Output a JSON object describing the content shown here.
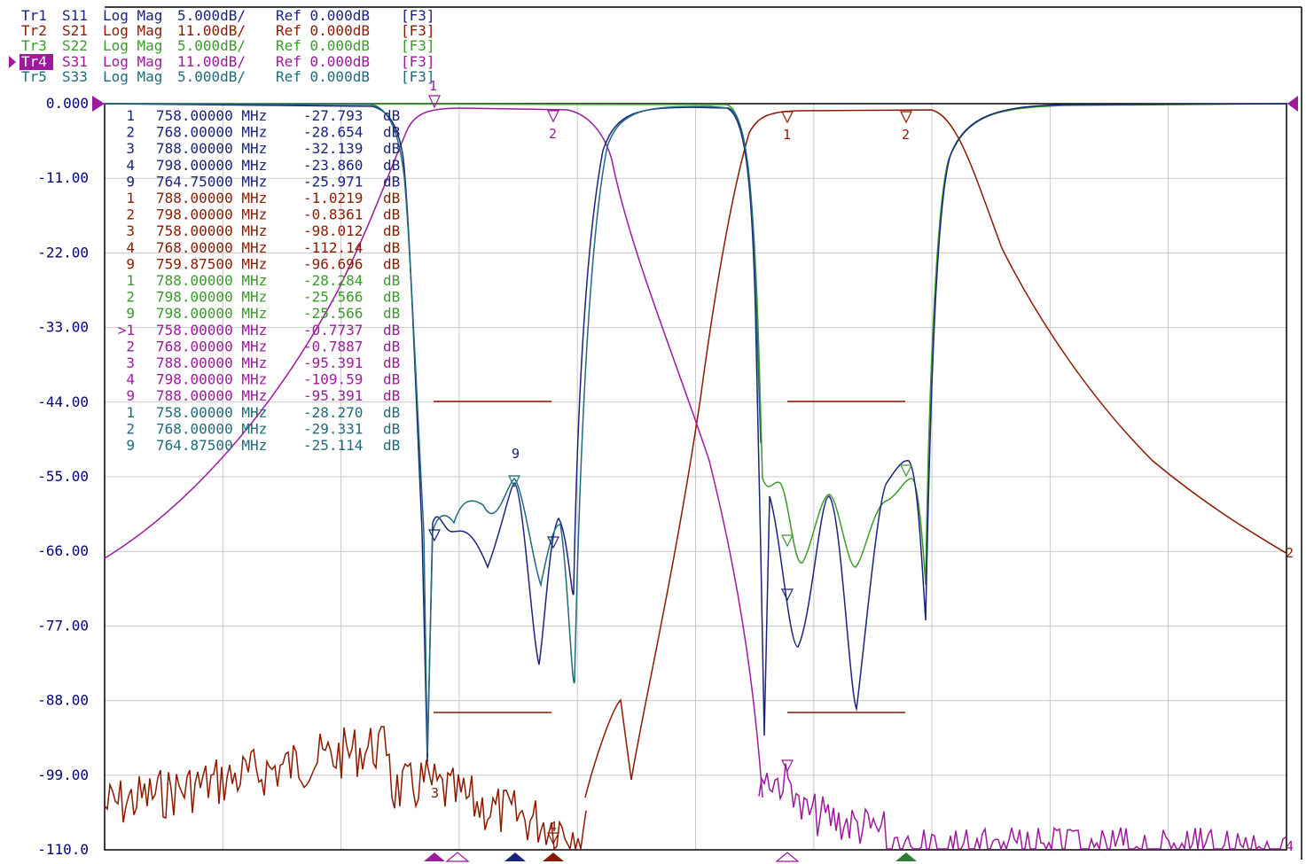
{
  "trace_headers": [
    {
      "id": "Tr1",
      "param": "S11",
      "format": "Log Mag",
      "scale": "5.000dB/",
      "ref": "Ref 0.000dB",
      "channel": "[F3]",
      "color": "#1a237e",
      "active": false
    },
    {
      "id": "Tr2",
      "param": "S21",
      "format": "Log Mag",
      "scale": "11.00dB/",
      "ref": "Ref 0.000dB",
      "channel": "[F3]",
      "color": "#8b1a00",
      "active": false
    },
    {
      "id": "Tr3",
      "param": "S22",
      "format": "Log Mag",
      "scale": "5.000dB/",
      "ref": "Ref 0.000dB",
      "channel": "[F3]",
      "color": "#3a9a2a",
      "active": false
    },
    {
      "id": "Tr4",
      "param": "S31",
      "format": "Log Mag",
      "scale": "11.00dB/",
      "ref": "Ref 0.000dB",
      "channel": "[F3]",
      "color": "#9c1a9c",
      "active": true
    },
    {
      "id": "Tr5",
      "param": "S33",
      "format": "Log Mag",
      "scale": "5.000dB/",
      "ref": "Ref 0.000dB",
      "channel": "[F3]",
      "color": "#1f6b7a",
      "active": false
    }
  ],
  "y_ticks": [
    "0.000",
    "-11.00",
    "-22.00",
    "-33.00",
    "-44.00",
    "-55.00",
    "-66.00",
    "-77.00",
    "-88.00",
    "-99.00",
    "-110.0"
  ],
  "marker_table": [
    {
      "num": "1",
      "freq": "758.00000 MHz",
      "value": "-27.793",
      "unit": "dB",
      "trace": "Tr1"
    },
    {
      "num": "2",
      "freq": "768.00000 MHz",
      "value": "-28.654",
      "unit": "dB",
      "trace": "Tr1"
    },
    {
      "num": "3",
      "freq": "788.00000 MHz",
      "value": "-32.139",
      "unit": "dB",
      "trace": "Tr1"
    },
    {
      "num": "4",
      "freq": "798.00000 MHz",
      "value": "-23.860",
      "unit": "dB",
      "trace": "Tr1"
    },
    {
      "num": "9",
      "freq": "764.75000 MHz",
      "value": "-25.971",
      "unit": "dB",
      "trace": "Tr1"
    },
    {
      "num": "1",
      "freq": "788.00000 MHz",
      "value": "-1.0219",
      "unit": "dB",
      "trace": "Tr2"
    },
    {
      "num": "2",
      "freq": "798.00000 MHz",
      "value": "-0.8361",
      "unit": "dB",
      "trace": "Tr2"
    },
    {
      "num": "3",
      "freq": "758.00000 MHz",
      "value": "-98.012",
      "unit": "dB",
      "trace": "Tr2"
    },
    {
      "num": "4",
      "freq": "768.00000 MHz",
      "value": "-112.14",
      "unit": "dB",
      "trace": "Tr2"
    },
    {
      "num": "9",
      "freq": "759.87500 MHz",
      "value": "-96.696",
      "unit": "dB",
      "trace": "Tr2"
    },
    {
      "num": "1",
      "freq": "788.00000 MHz",
      "value": "-28.284",
      "unit": "dB",
      "trace": "Tr3"
    },
    {
      "num": "2",
      "freq": "798.00000 MHz",
      "value": "-25.566",
      "unit": "dB",
      "trace": "Tr3"
    },
    {
      "num": "9",
      "freq": "798.00000 MHz",
      "value": "-25.566",
      "unit": "dB",
      "trace": "Tr3"
    },
    {
      "num": ">1",
      "freq": "758.00000 MHz",
      "value": "-0.7737",
      "unit": "dB",
      "trace": "Tr4"
    },
    {
      "num": "2",
      "freq": "768.00000 MHz",
      "value": "-0.7887",
      "unit": "dB",
      "trace": "Tr4"
    },
    {
      "num": "3",
      "freq": "788.00000 MHz",
      "value": "-95.391",
      "unit": "dB",
      "trace": "Tr4"
    },
    {
      "num": "4",
      "freq": "798.00000 MHz",
      "value": "-109.59",
      "unit": "dB",
      "trace": "Tr4"
    },
    {
      "num": "9",
      "freq": "788.00000 MHz",
      "value": "-95.391",
      "unit": "dB",
      "trace": "Tr4"
    },
    {
      "num": "1",
      "freq": "758.00000 MHz",
      "value": "-28.270",
      "unit": "dB",
      "trace": "Tr5"
    },
    {
      "num": "2",
      "freq": "768.00000 MHz",
      "value": "-29.331",
      "unit": "dB",
      "trace": "Tr5"
    },
    {
      "num": "9",
      "freq": "764.87500 MHz",
      "value": "-25.114",
      "unit": "dB",
      "trace": "Tr5"
    }
  ],
  "trace_marker_labels": [
    "1",
    "2",
    "1",
    "2",
    "3",
    "4",
    "9",
    "2",
    "4"
  ],
  "colors": {
    "background": "#ffffff",
    "grid": "#c8c8c8",
    "frame": "#000000",
    "axis_text": "#000080",
    "reference_arrow": "#9c1a9c",
    "limit_line": "#8b1a00"
  }
}
